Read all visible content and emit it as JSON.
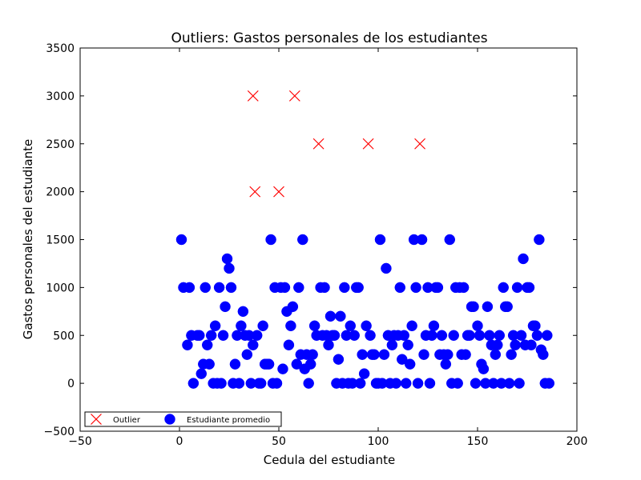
{
  "chart_data": {
    "type": "scatter",
    "title": "Outliers: Gastos personales de los estudiantes",
    "xlabel": "Cedula del estudiante",
    "ylabel": "Gastos personales del estudiante",
    "xlim": [
      -50,
      200
    ],
    "ylim": [
      -500,
      3500
    ],
    "xticks": [
      -50,
      0,
      50,
      100,
      150,
      200
    ],
    "yticks": [
      -500,
      0,
      500,
      1000,
      1500,
      2000,
      2500,
      3000,
      3500
    ],
    "grid": false,
    "legend": {
      "position": "lower-left",
      "layout": "horizontal"
    },
    "series": [
      {
        "name": "Outlier",
        "marker": "x",
        "color": "#ff0000",
        "points": [
          [
            37,
            3000
          ],
          [
            58,
            3000
          ],
          [
            70,
            2500
          ],
          [
            95,
            2500
          ],
          [
            121,
            2500
          ],
          [
            38,
            2000
          ],
          [
            50,
            2000
          ]
        ]
      },
      {
        "name": "Estudiante promedio",
        "marker": "circle",
        "color": "#0000ff",
        "points": [
          [
            1,
            1500
          ],
          [
            2,
            1000
          ],
          [
            4,
            400
          ],
          [
            5,
            1000
          ],
          [
            6,
            500
          ],
          [
            7,
            0
          ],
          [
            9,
            500
          ],
          [
            10,
            500
          ],
          [
            11,
            100
          ],
          [
            12,
            200
          ],
          [
            13,
            1000
          ],
          [
            14,
            400
          ],
          [
            15,
            200
          ],
          [
            16,
            500
          ],
          [
            17,
            0
          ],
          [
            18,
            600
          ],
          [
            19,
            0
          ],
          [
            20,
            1000
          ],
          [
            21,
            0
          ],
          [
            22,
            500
          ],
          [
            23,
            800
          ],
          [
            24,
            1300
          ],
          [
            25,
            1200
          ],
          [
            26,
            1000
          ],
          [
            27,
            0
          ],
          [
            28,
            200
          ],
          [
            29,
            500
          ],
          [
            30,
            0
          ],
          [
            31,
            600
          ],
          [
            32,
            750
          ],
          [
            33,
            500
          ],
          [
            34,
            300
          ],
          [
            35,
            500
          ],
          [
            36,
            0
          ],
          [
            37,
            400
          ],
          [
            39,
            500
          ],
          [
            40,
            0
          ],
          [
            41,
            0
          ],
          [
            42,
            600
          ],
          [
            43,
            200
          ],
          [
            44,
            200
          ],
          [
            45,
            200
          ],
          [
            46,
            1500
          ],
          [
            47,
            0
          ],
          [
            48,
            1000
          ],
          [
            49,
            0
          ],
          [
            51,
            1000
          ],
          [
            52,
            150
          ],
          [
            53,
            1000
          ],
          [
            54,
            750
          ],
          [
            55,
            400
          ],
          [
            56,
            600
          ],
          [
            57,
            800
          ],
          [
            59,
            200
          ],
          [
            60,
            1000
          ],
          [
            61,
            300
          ],
          [
            62,
            1500
          ],
          [
            63,
            150
          ],
          [
            64,
            300
          ],
          [
            65,
            0
          ],
          [
            66,
            200
          ],
          [
            67,
            300
          ],
          [
            68,
            600
          ],
          [
            69,
            500
          ],
          [
            71,
            1000
          ],
          [
            72,
            500
          ],
          [
            73,
            1000
          ],
          [
            74,
            500
          ],
          [
            75,
            400
          ],
          [
            76,
            700
          ],
          [
            77,
            500
          ],
          [
            78,
            500
          ],
          [
            79,
            0
          ],
          [
            80,
            250
          ],
          [
            81,
            700
          ],
          [
            82,
            0
          ],
          [
            83,
            1000
          ],
          [
            84,
            500
          ],
          [
            85,
            0
          ],
          [
            86,
            600
          ],
          [
            87,
            0
          ],
          [
            88,
            500
          ],
          [
            89,
            1000
          ],
          [
            90,
            1000
          ],
          [
            91,
            0
          ],
          [
            92,
            300
          ],
          [
            93,
            100
          ],
          [
            94,
            600
          ],
          [
            96,
            500
          ],
          [
            97,
            300
          ],
          [
            98,
            300
          ],
          [
            99,
            0
          ],
          [
            100,
            0
          ],
          [
            101,
            1500
          ],
          [
            102,
            0
          ],
          [
            103,
            300
          ],
          [
            104,
            1200
          ],
          [
            105,
            500
          ],
          [
            106,
            0
          ],
          [
            107,
            400
          ],
          [
            108,
            500
          ],
          [
            109,
            0
          ],
          [
            110,
            500
          ],
          [
            111,
            1000
          ],
          [
            112,
            250
          ],
          [
            113,
            500
          ],
          [
            114,
            0
          ],
          [
            115,
            400
          ],
          [
            116,
            200
          ],
          [
            117,
            600
          ],
          [
            118,
            1500
          ],
          [
            119,
            1000
          ],
          [
            120,
            0
          ],
          [
            122,
            1500
          ],
          [
            123,
            300
          ],
          [
            124,
            500
          ],
          [
            125,
            1000
          ],
          [
            126,
            0
          ],
          [
            127,
            500
          ],
          [
            128,
            600
          ],
          [
            129,
            1000
          ],
          [
            130,
            1000
          ],
          [
            131,
            300
          ],
          [
            132,
            500
          ],
          [
            133,
            300
          ],
          [
            134,
            200
          ],
          [
            135,
            300
          ],
          [
            136,
            1500
          ],
          [
            137,
            0
          ],
          [
            138,
            500
          ],
          [
            139,
            1000
          ],
          [
            140,
            0
          ],
          [
            141,
            1000
          ],
          [
            142,
            300
          ],
          [
            143,
            1000
          ],
          [
            144,
            300
          ],
          [
            145,
            500
          ],
          [
            146,
            500
          ],
          [
            147,
            800
          ],
          [
            148,
            800
          ],
          [
            149,
            0
          ],
          [
            150,
            600
          ],
          [
            151,
            500
          ],
          [
            152,
            200
          ],
          [
            153,
            150
          ],
          [
            154,
            0
          ],
          [
            155,
            800
          ],
          [
            156,
            500
          ],
          [
            157,
            400
          ],
          [
            158,
            0
          ],
          [
            159,
            300
          ],
          [
            160,
            400
          ],
          [
            161,
            500
          ],
          [
            162,
            0
          ],
          [
            163,
            1000
          ],
          [
            164,
            800
          ],
          [
            165,
            800
          ],
          [
            166,
            0
          ],
          [
            167,
            300
          ],
          [
            168,
            500
          ],
          [
            169,
            400
          ],
          [
            170,
            1000
          ],
          [
            171,
            0
          ],
          [
            172,
            500
          ],
          [
            173,
            1300
          ],
          [
            174,
            400
          ],
          [
            175,
            1000
          ],
          [
            176,
            1000
          ],
          [
            177,
            400
          ],
          [
            178,
            600
          ],
          [
            179,
            600
          ],
          [
            180,
            500
          ],
          [
            181,
            1500
          ],
          [
            182,
            350
          ],
          [
            183,
            300
          ],
          [
            184,
            0
          ],
          [
            185,
            500
          ],
          [
            186,
            0
          ]
        ]
      }
    ]
  }
}
